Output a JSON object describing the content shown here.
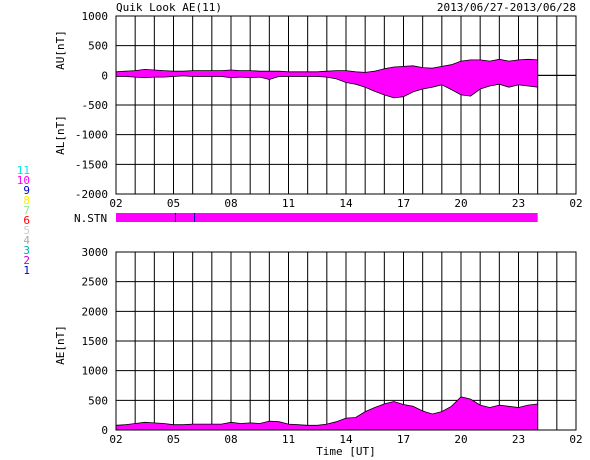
{
  "header": {
    "title": "Quik Look AE(11)",
    "date_range": "2013/06/27-2013/06/28"
  },
  "station_legend": [
    {
      "label": "11",
      "color": "#00e5e5"
    },
    {
      "label": "10",
      "color": "#ff00ff"
    },
    {
      "label": "9",
      "color": "#0000cc"
    },
    {
      "label": "8",
      "color": "#ffee00"
    },
    {
      "label": "7",
      "color": "#88ee88"
    },
    {
      "label": "6",
      "color": "#ff0000"
    },
    {
      "label": "5",
      "color": "#cccccc"
    },
    {
      "label": "4",
      "color": "#aaaaaa"
    },
    {
      "label": "3",
      "color": "#00aaaa"
    },
    {
      "label": "2",
      "color": "#cc00cc"
    },
    {
      "label": "1",
      "color": "#0000cc"
    }
  ],
  "colors": {
    "fill": "#ff00ff",
    "grid": "#000000",
    "nstn_tick": "#0000aa"
  },
  "nstn_label": "N.STN",
  "xlabel": "Time [UT]",
  "chart_data": [
    {
      "type": "area",
      "name": "AU/AL panel",
      "ylabel_top": "AU[nT]",
      "ylabel_bottom": "AL[nT]",
      "ylim": [
        -2000,
        1000
      ],
      "yticks": [
        1000,
        500,
        0,
        -500,
        -1000,
        -1500,
        -2000
      ],
      "xlim": [
        2,
        26
      ],
      "xticks": [
        "02",
        "05",
        "08",
        "11",
        "14",
        "17",
        "20",
        "23",
        "02"
      ],
      "grid": true,
      "x": [
        2,
        2.5,
        3,
        3.5,
        4,
        4.5,
        5,
        5.5,
        6,
        6.5,
        7,
        7.5,
        8,
        8.5,
        9,
        9.5,
        10,
        10.5,
        11,
        11.5,
        12,
        12.5,
        13,
        13.5,
        14,
        14.5,
        15,
        15.5,
        16,
        16.5,
        17,
        17.5,
        18,
        18.5,
        19,
        19.5,
        20,
        20.5,
        21,
        21.5,
        22,
        22.5,
        23,
        23.5,
        24
      ],
      "series": [
        {
          "name": "AU",
          "values": [
            60,
            70,
            80,
            100,
            90,
            80,
            70,
            70,
            80,
            80,
            80,
            80,
            90,
            80,
            80,
            70,
            70,
            70,
            60,
            60,
            60,
            60,
            70,
            80,
            80,
            60,
            50,
            70,
            110,
            140,
            150,
            160,
            130,
            120,
            150,
            180,
            240,
            260,
            260,
            240,
            270,
            240,
            260,
            270,
            260
          ]
        },
        {
          "name": "AL",
          "values": [
            -20,
            -20,
            -30,
            -40,
            -30,
            -30,
            -20,
            -10,
            -20,
            -20,
            -20,
            -20,
            -40,
            -30,
            -40,
            -30,
            -70,
            -20,
            -20,
            -20,
            -20,
            -20,
            -30,
            -60,
            -120,
            -150,
            -200,
            -270,
            -330,
            -380,
            -360,
            -280,
            -230,
            -200,
            -160,
            -240,
            -330,
            -350,
            -230,
            -180,
            -150,
            -200,
            -160,
            -180,
            -200
          ]
        }
      ]
    },
    {
      "type": "area",
      "name": "AE panel",
      "ylabel": "AE[nT]",
      "ylim": [
        0,
        3000
      ],
      "yticks": [
        3000,
        2500,
        2000,
        1500,
        1000,
        500,
        0
      ],
      "xlim": [
        2,
        26
      ],
      "xticks": [
        "02",
        "05",
        "08",
        "11",
        "14",
        "17",
        "20",
        "23",
        "02"
      ],
      "grid": true,
      "x": [
        2,
        2.5,
        3,
        3.5,
        4,
        4.5,
        5,
        5.5,
        6,
        6.5,
        7,
        7.5,
        8,
        8.5,
        9,
        9.5,
        10,
        10.5,
        11,
        11.5,
        12,
        12.5,
        13,
        13.5,
        14,
        14.5,
        15,
        15.5,
        16,
        16.5,
        17,
        17.5,
        18,
        18.5,
        19,
        19.5,
        20,
        20.5,
        21,
        21.5,
        22,
        22.5,
        23,
        23.5,
        24
      ],
      "series": [
        {
          "name": "AE",
          "values": [
            80,
            90,
            110,
            130,
            120,
            110,
            90,
            90,
            100,
            100,
            100,
            100,
            130,
            110,
            120,
            110,
            150,
            140,
            100,
            90,
            80,
            80,
            100,
            140,
            200,
            210,
            310,
            380,
            440,
            480,
            430,
            400,
            320,
            270,
            310,
            400,
            560,
            520,
            420,
            380,
            420,
            400,
            380,
            420,
            440
          ]
        }
      ]
    }
  ]
}
